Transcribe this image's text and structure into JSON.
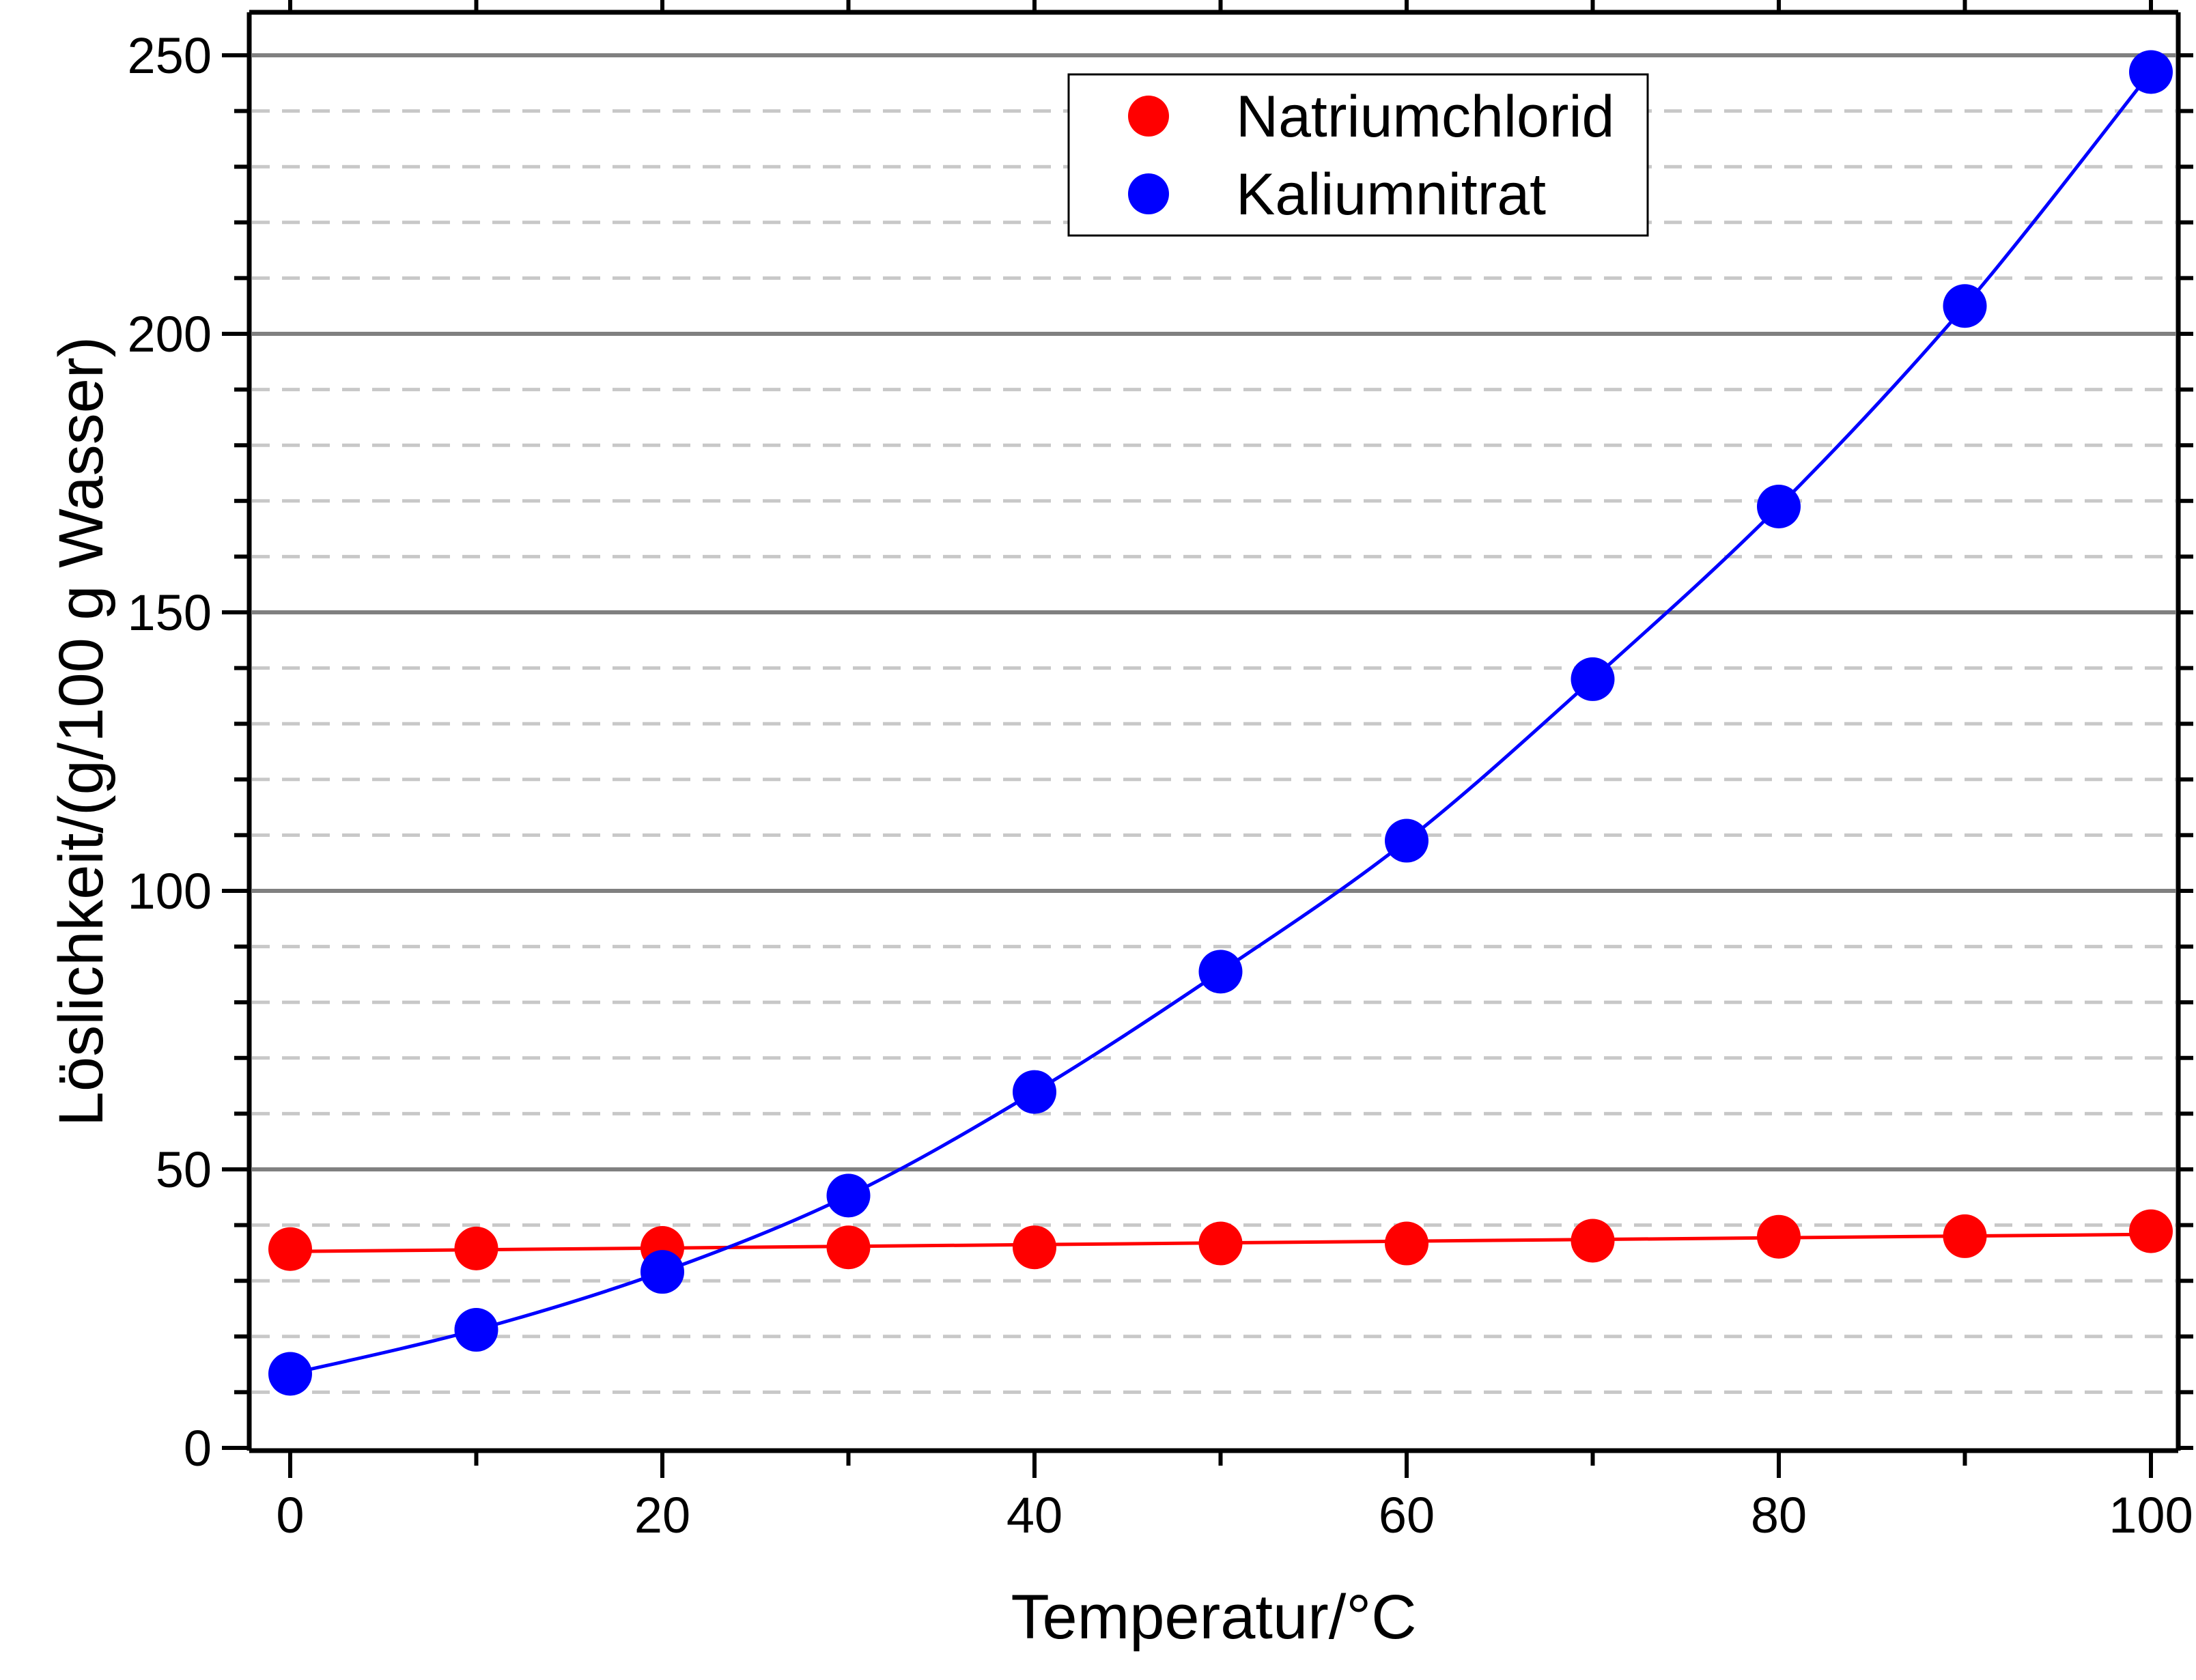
{
  "chart_data": {
    "type": "scatter",
    "title": "",
    "xlabel": "Temperatur/°C",
    "ylabel": "Löslichkeit/(g/100 g Wasser)",
    "xlim": [
      -3,
      101
    ],
    "ylim": [
      0,
      250
    ],
    "xticks": [
      0,
      20,
      40,
      60,
      80,
      100
    ],
    "yticks": [
      0,
      50,
      100,
      150,
      200,
      250
    ],
    "x_minor_step": 10,
    "y_minor_step": 10,
    "grid": {
      "major": true,
      "minor": true,
      "major_color": "#808080",
      "minor_color": "#c8c8c8",
      "minor_style": "dashed"
    },
    "legend_position": "top-center",
    "series": [
      {
        "name": "Natriumchlorid",
        "color": "#ff0000",
        "marker": "circle",
        "fit": "line",
        "x": [
          0,
          10,
          20,
          30,
          40,
          50,
          60,
          70,
          80,
          90,
          100
        ],
        "y": [
          35.7,
          35.8,
          35.9,
          36.0,
          36.0,
          36.7,
          36.7,
          37.2,
          37.9,
          38.0,
          38.9
        ]
      },
      {
        "name": "Kaliumnitrat",
        "color": "#0000ff",
        "marker": "circle",
        "fit": "curve",
        "x": [
          0,
          10,
          20,
          30,
          40,
          50,
          60,
          70,
          80,
          90,
          100
        ],
        "y": [
          13.3,
          21.2,
          31.6,
          45.3,
          63.9,
          85.5,
          109.0,
          138.0,
          169.0,
          205.0,
          247.0
        ]
      }
    ]
  }
}
